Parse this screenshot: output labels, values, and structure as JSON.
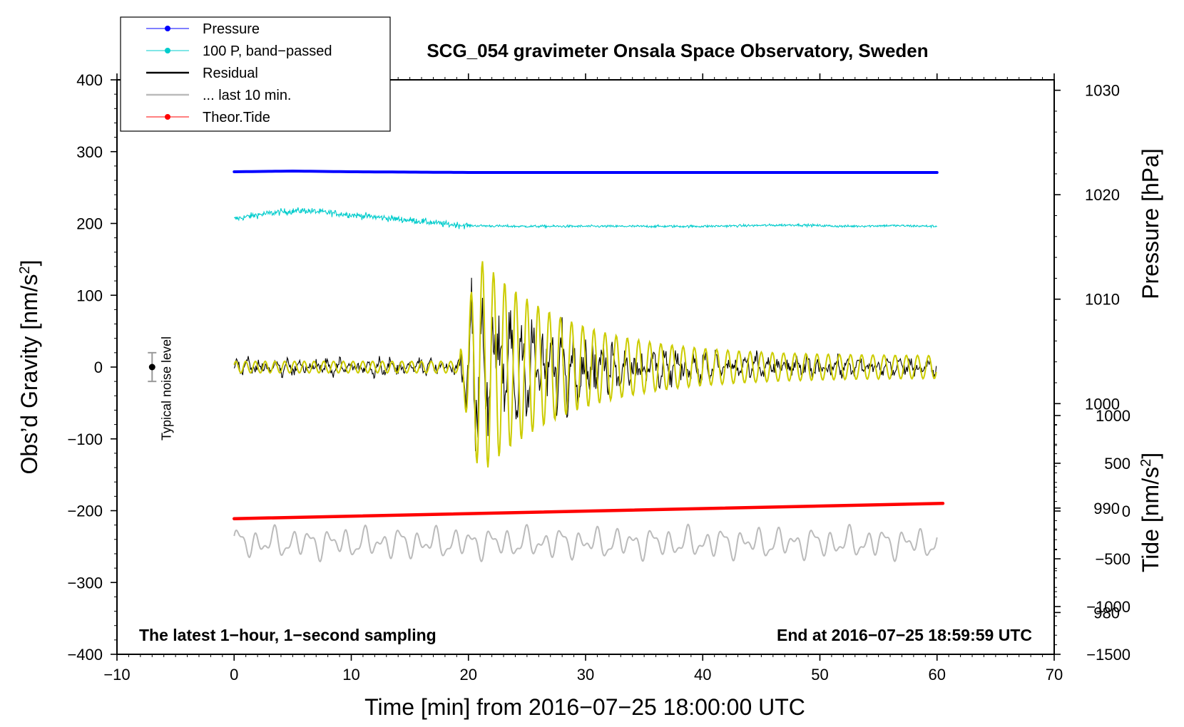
{
  "chart_data": {
    "type": "line",
    "title": "SCG_054 gravimeter Onsala Space Observatory, Sweden",
    "xlabel": "Time [min] from 2016−07−25 18:00:00 UTC",
    "ylabel_left_prefix": "Obs’d Gravity [nm/s",
    "ylabel_right_pressure_text": "Pressure [hPa]",
    "ylabel_right_tide_prefix": "Tide [nm/s",
    "unit_superscript": "2",
    "unit_close": "]",
    "xlim": [
      -10,
      70
    ],
    "ylim_left": [
      -400,
      400
    ],
    "pressure_axis": {
      "range_hPa": [
        976,
        1031
      ],
      "ticks": [
        1030,
        1020,
        1010,
        1000,
        990,
        980
      ]
    },
    "tide_axis": {
      "range_nm_s2": [
        -1500,
        1000
      ],
      "ticks": [
        1000,
        500,
        0,
        -500,
        -1000,
        -1500
      ]
    },
    "x_ticks": [
      -10,
      0,
      10,
      20,
      30,
      40,
      50,
      60,
      70
    ],
    "x_tick_labels": [
      "−10",
      "0",
      "10",
      "20",
      "30",
      "40",
      "50",
      "60",
      "70"
    ],
    "y_ticks": [
      400,
      300,
      200,
      100,
      0,
      -100,
      -200,
      -300,
      -400
    ],
    "y_tick_labels": [
      "400",
      "300",
      "200",
      "100",
      "0",
      "−100",
      "−200",
      "−300",
      "−400"
    ],
    "tide_tick_labels": [
      "1000",
      "500",
      "0",
      "−500",
      "−1000",
      "−1500"
    ],
    "legend": [
      {
        "label": "Pressure",
        "color": "#0000ff",
        "marker": true
      },
      {
        "label": "100 P, band−passed",
        "color": "#00cccc",
        "marker": true
      },
      {
        "label": "Residual",
        "color": "#000000",
        "marker": false
      },
      {
        "label": "... last 10 min.",
        "color": "#bbbbbb",
        "marker": false
      },
      {
        "label": "Theor.Tide",
        "color": "#ff0000",
        "marker": true
      }
    ],
    "annotations": {
      "noise_label": "Typical noise level",
      "noise_center": 0,
      "noise_half_range": 20,
      "noise_x": -7,
      "bottom_left": "The latest 1−hour, 1−second sampling",
      "bottom_right": "End at 2016−07−25 18:59:59 UTC"
    },
    "series": [
      {
        "name": "Pressure",
        "axis": "left",
        "color": "#0000ff",
        "x": [
          0,
          5,
          10,
          20,
          30,
          40,
          50,
          60
        ],
        "y": [
          272,
          273,
          272,
          271,
          271,
          271,
          271,
          271
        ]
      },
      {
        "name": "100 P, band−passed",
        "axis": "left",
        "color": "#00cccc",
        "x": [
          0,
          2,
          4,
          6,
          8,
          10,
          12,
          14,
          16,
          18,
          20,
          24,
          28,
          32,
          36,
          40,
          44,
          48,
          52,
          56,
          60
        ],
        "y": [
          206,
          212,
          216,
          218,
          215,
          212,
          209,
          206,
          203,
          199,
          197,
          196,
          196,
          196,
          196,
          196,
          197,
          198,
          196,
          197,
          196
        ]
      },
      {
        "name": "Residual",
        "axis": "left",
        "color": "#000000",
        "x_range": [
          0,
          60
        ],
        "peak_time": 21,
        "peak_amplitude": 160,
        "background_amplitude": 18
      },
      {
        "name": "... last 10 min.",
        "axis": "left",
        "color": "#bbbbbb",
        "x_range": [
          0,
          60
        ],
        "baseline": -245,
        "amplitude": 22
      },
      {
        "name": "Theor.Tide",
        "axis": "tide",
        "color": "#ff0000",
        "x": [
          0,
          60.5
        ],
        "y": [
          -80,
          80
        ]
      }
    ]
  }
}
